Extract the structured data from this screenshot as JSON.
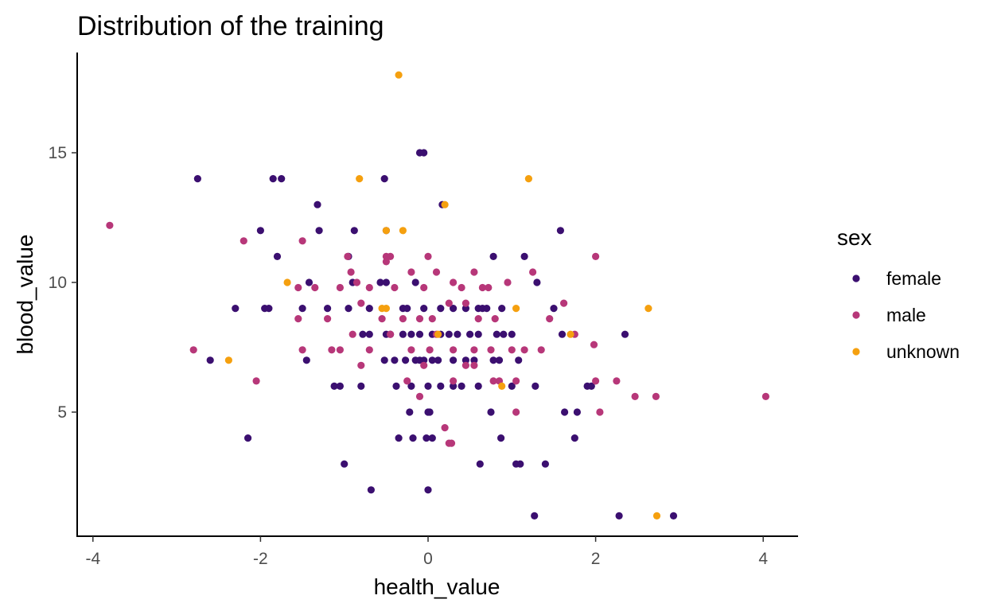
{
  "chart_data": {
    "type": "scatter",
    "title": "Distribution of the training",
    "xlabel": "health_value",
    "ylabel": "blood_value",
    "xlim": [
      -4.2,
      4.4
    ],
    "ylim": [
      0.2,
      18.9
    ],
    "x_ticks": [
      -4,
      -2,
      0,
      2,
      4
    ],
    "y_ticks": [
      5,
      10,
      15
    ],
    "grid": false,
    "legend": {
      "title": "sex",
      "placement": "right"
    },
    "series": [
      {
        "name": "female",
        "color": "#3b0f70",
        "points": [
          [
            -2.75,
            14
          ],
          [
            -1.85,
            14
          ],
          [
            -1.75,
            14
          ],
          [
            -0.52,
            14
          ],
          [
            -0.1,
            15
          ],
          [
            -0.05,
            15
          ],
          [
            0.17,
            13
          ],
          [
            -1.32,
            13
          ],
          [
            -2.0,
            12
          ],
          [
            -1.3,
            12
          ],
          [
            -0.88,
            12
          ],
          [
            -0.5,
            12
          ],
          [
            1.58,
            12
          ],
          [
            -1.8,
            11
          ],
          [
            -0.95,
            11
          ],
          [
            0.78,
            11
          ],
          [
            1.15,
            11
          ],
          [
            -0.57,
            10
          ],
          [
            -0.5,
            10
          ],
          [
            -0.9,
            10
          ],
          [
            -1.42,
            10
          ],
          [
            -0.15,
            10
          ],
          [
            1.3,
            10
          ],
          [
            -2.3,
            9
          ],
          [
            -1.95,
            9
          ],
          [
            -1.9,
            9
          ],
          [
            -1.5,
            9
          ],
          [
            -1.2,
            9
          ],
          [
            -0.95,
            9
          ],
          [
            -0.7,
            9
          ],
          [
            -0.3,
            9
          ],
          [
            -0.25,
            9
          ],
          [
            -0.05,
            9
          ],
          [
            0.15,
            9
          ],
          [
            0.3,
            9
          ],
          [
            0.45,
            9
          ],
          [
            0.6,
            9
          ],
          [
            0.65,
            9
          ],
          [
            0.7,
            9
          ],
          [
            0.88,
            9
          ],
          [
            1.5,
            9
          ],
          [
            -0.78,
            8
          ],
          [
            -0.7,
            8
          ],
          [
            -0.5,
            8
          ],
          [
            -0.45,
            8
          ],
          [
            -0.3,
            8
          ],
          [
            -0.2,
            8
          ],
          [
            -0.1,
            8
          ],
          [
            0.05,
            8
          ],
          [
            0.15,
            8
          ],
          [
            0.25,
            8
          ],
          [
            0.35,
            8
          ],
          [
            0.5,
            8
          ],
          [
            0.6,
            8
          ],
          [
            0.82,
            8
          ],
          [
            0.9,
            8
          ],
          [
            1.0,
            8
          ],
          [
            1.6,
            8
          ],
          [
            2.35,
            8
          ],
          [
            -2.6,
            7
          ],
          [
            -1.45,
            7
          ],
          [
            -0.52,
            7
          ],
          [
            -0.4,
            7
          ],
          [
            -0.27,
            7
          ],
          [
            -0.15,
            7
          ],
          [
            -0.1,
            7
          ],
          [
            -0.05,
            7
          ],
          [
            0.05,
            7
          ],
          [
            0.12,
            7
          ],
          [
            0.3,
            7
          ],
          [
            0.45,
            7
          ],
          [
            0.55,
            7
          ],
          [
            0.78,
            7
          ],
          [
            0.85,
            7
          ],
          [
            1.08,
            7
          ],
          [
            -1.12,
            6
          ],
          [
            -1.05,
            6
          ],
          [
            -0.8,
            6
          ],
          [
            -0.38,
            6
          ],
          [
            -0.2,
            6
          ],
          [
            0.0,
            6
          ],
          [
            0.15,
            6
          ],
          [
            0.3,
            6
          ],
          [
            0.4,
            6
          ],
          [
            0.6,
            6
          ],
          [
            1.0,
            6
          ],
          [
            1.28,
            6
          ],
          [
            1.9,
            6
          ],
          [
            1.95,
            6
          ],
          [
            -0.22,
            5
          ],
          [
            0.0,
            5
          ],
          [
            0.02,
            5
          ],
          [
            0.75,
            5
          ],
          [
            1.63,
            5
          ],
          [
            1.78,
            5
          ],
          [
            -2.15,
            4
          ],
          [
            -0.35,
            4
          ],
          [
            -0.18,
            4
          ],
          [
            -0.02,
            4
          ],
          [
            0.05,
            4
          ],
          [
            0.87,
            4
          ],
          [
            1.75,
            4
          ],
          [
            -1.0,
            3
          ],
          [
            0.62,
            3
          ],
          [
            1.05,
            3
          ],
          [
            1.1,
            3
          ],
          [
            1.4,
            3
          ],
          [
            -0.68,
            2
          ],
          [
            0.0,
            2
          ],
          [
            1.27,
            1
          ],
          [
            2.28,
            1
          ],
          [
            2.93,
            1
          ]
        ]
      },
      {
        "name": "male",
        "color": "#b73779",
        "points": [
          [
            -3.8,
            12.2
          ],
          [
            -2.2,
            11.6
          ],
          [
            -1.5,
            11.6
          ],
          [
            -0.96,
            11
          ],
          [
            -0.45,
            11
          ],
          [
            -0.5,
            11
          ],
          [
            0.0,
            11
          ],
          [
            2.0,
            11
          ],
          [
            -1.55,
            9.8
          ],
          [
            -1.35,
            9.8
          ],
          [
            -0.92,
            10.4
          ],
          [
            -0.85,
            10
          ],
          [
            -0.5,
            10.8
          ],
          [
            -0.2,
            10.4
          ],
          [
            0.1,
            10.4
          ],
          [
            0.3,
            10
          ],
          [
            0.55,
            10.4
          ],
          [
            0.95,
            10
          ],
          [
            1.25,
            10.4
          ],
          [
            -1.05,
            9.8
          ],
          [
            -0.7,
            9.8
          ],
          [
            -0.4,
            9.8
          ],
          [
            -0.05,
            9.8
          ],
          [
            0.4,
            9.8
          ],
          [
            0.65,
            9.8
          ],
          [
            0.72,
            9.8
          ],
          [
            -1.55,
            8.6
          ],
          [
            -1.2,
            8.6
          ],
          [
            -0.8,
            9.2
          ],
          [
            -0.55,
            8.6
          ],
          [
            -0.3,
            8.6
          ],
          [
            -0.1,
            8.6
          ],
          [
            0.05,
            8.6
          ],
          [
            0.25,
            9.2
          ],
          [
            0.45,
            9.2
          ],
          [
            0.6,
            8.6
          ],
          [
            0.8,
            8.6
          ],
          [
            1.45,
            8.6
          ],
          [
            1.62,
            9.2
          ],
          [
            -1.5,
            7.4
          ],
          [
            -1.15,
            7.4
          ],
          [
            -1.05,
            7.4
          ],
          [
            -0.9,
            8
          ],
          [
            -0.7,
            7.4
          ],
          [
            -0.45,
            8
          ],
          [
            -0.2,
            7.4
          ],
          [
            0.02,
            7.4
          ],
          [
            0.1,
            8
          ],
          [
            0.3,
            7.4
          ],
          [
            0.55,
            7.4
          ],
          [
            0.75,
            7.4
          ],
          [
            1.0,
            7.4
          ],
          [
            1.15,
            7.4
          ],
          [
            1.35,
            7.4
          ],
          [
            1.75,
            8
          ],
          [
            1.98,
            7.6
          ],
          [
            -2.8,
            7.4
          ],
          [
            -0.8,
            6.8
          ],
          [
            -0.25,
            6.2
          ],
          [
            -0.05,
            6.8
          ],
          [
            0.3,
            6.2
          ],
          [
            0.45,
            6.8
          ],
          [
            0.55,
            6.8
          ],
          [
            0.78,
            6.2
          ],
          [
            0.85,
            6.2
          ],
          [
            1.05,
            6.2
          ],
          [
            2.0,
            6.2
          ],
          [
            2.25,
            6.2
          ],
          [
            -2.05,
            6.2
          ],
          [
            -0.1,
            5.6
          ],
          [
            1.05,
            5
          ],
          [
            2.05,
            5
          ],
          [
            2.47,
            5.6
          ],
          [
            2.72,
            5.6
          ],
          [
            4.03,
            5.6
          ],
          [
            0.2,
            4.4
          ],
          [
            0.25,
            3.8
          ],
          [
            0.28,
            3.8
          ]
        ]
      },
      {
        "name": "unknown",
        "color": "#f5a00f",
        "points": [
          [
            -0.35,
            18
          ],
          [
            -0.82,
            14
          ],
          [
            1.2,
            14
          ],
          [
            0.2,
            13
          ],
          [
            -0.5,
            12
          ],
          [
            -0.3,
            12
          ],
          [
            -1.68,
            10
          ],
          [
            -0.55,
            9
          ],
          [
            -0.5,
            9
          ],
          [
            1.05,
            9
          ],
          [
            2.63,
            9
          ],
          [
            0.12,
            8
          ],
          [
            1.7,
            8
          ],
          [
            -2.38,
            7
          ],
          [
            0.88,
            6
          ],
          [
            2.73,
            1
          ]
        ]
      }
    ]
  }
}
